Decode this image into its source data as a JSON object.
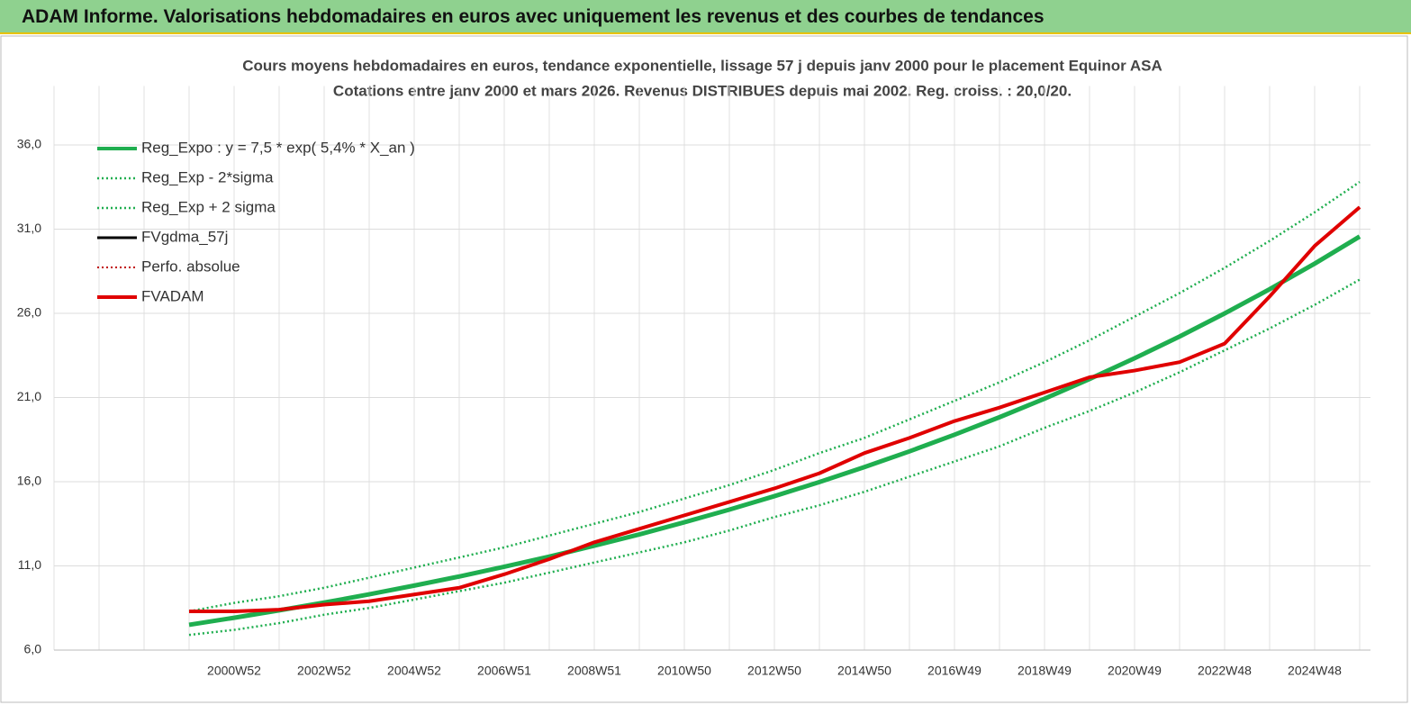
{
  "header": {
    "title": "ADAM Informe. Valorisations hebdomadaires en euros avec uniquement les revenus et des courbes de tendances"
  },
  "chart_data": {
    "type": "line",
    "title": "Cours moyens hebdomadaires en euros, tendance exponentielle, lissage 57 j depuis janv 2000 pour le placement Equinor ASA",
    "subtitle": "Cotations entre janv 2000 et mars 2026. Revenus DISTRIBUES depuis mai 2002. Reg. croiss. : 20,0/20.",
    "categories": [
      null,
      null,
      null,
      null,
      "2000W52",
      null,
      "2002W52",
      null,
      "2004W52",
      null,
      "2006W51",
      null,
      "2008W51",
      null,
      "2010W50",
      null,
      "2012W50",
      null,
      "2014W50",
      null,
      "2016W49",
      null,
      "2018W49",
      null,
      "2020W49",
      null,
      "2022W48",
      null,
      "2024W48",
      null
    ],
    "ylim": [
      6,
      39.5
    ],
    "yticks": [
      {
        "value": 6,
        "label": "6,0"
      },
      {
        "value": 11,
        "label": "11,0"
      },
      {
        "value": 16,
        "label": "16,0"
      },
      {
        "value": 21,
        "label": "21,0"
      },
      {
        "value": 26,
        "label": "26,0"
      },
      {
        "value": 31,
        "label": "31,0"
      },
      {
        "value": 36,
        "label": "36,0"
      }
    ],
    "grid": true,
    "series": [
      {
        "name": "Reg_Expo : y = 7,5 * exp( 5,4% *  X_an )",
        "color": "#1fae4f",
        "width": 5,
        "dash": "solid",
        "values": [
          null,
          null,
          null,
          7.5,
          7.92,
          8.36,
          8.82,
          9.31,
          9.83,
          10.37,
          10.95,
          11.55,
          12.2,
          12.87,
          13.59,
          14.34,
          15.14,
          15.98,
          16.87,
          17.8,
          18.79,
          19.83,
          20.93,
          22.1,
          23.33,
          24.62,
          25.99,
          27.43,
          28.95,
          30.56
        ]
      },
      {
        "name": "Reg_Exp - 2*sigma",
        "color": "#1fae4f",
        "width": 2.5,
        "dash": "dotted",
        "values": [
          null,
          null,
          null,
          6.9,
          7.2,
          7.6,
          8.1,
          8.5,
          9.0,
          9.5,
          10.0,
          10.6,
          11.2,
          11.8,
          12.4,
          13.1,
          13.9,
          14.6,
          15.4,
          16.3,
          17.2,
          18.1,
          19.2,
          20.2,
          21.3,
          22.5,
          23.8,
          25.1,
          26.5,
          28.0
        ]
      },
      {
        "name": "Reg_Exp + 2 sigma",
        "color": "#1fae4f",
        "width": 2.5,
        "dash": "dotted",
        "values": [
          null,
          null,
          null,
          8.3,
          8.8,
          9.2,
          9.7,
          10.3,
          10.9,
          11.5,
          12.1,
          12.8,
          13.5,
          14.2,
          15.0,
          15.8,
          16.7,
          17.7,
          18.6,
          19.7,
          20.8,
          21.9,
          23.1,
          24.4,
          25.8,
          27.2,
          28.7,
          30.3,
          32.0,
          33.8
        ]
      },
      {
        "name": "FVgdma_57j",
        "color": "#000000",
        "width": 3,
        "dash": "solid",
        "values": [
          null,
          null,
          null,
          8.3,
          8.3,
          8.4,
          8.7,
          8.9,
          9.3,
          9.7,
          10.5,
          11.4,
          12.4,
          13.2,
          14.0,
          14.8,
          15.6,
          16.5,
          17.7,
          18.6,
          19.6,
          20.4,
          21.3,
          22.2,
          22.6,
          23.1,
          24.2,
          27.0,
          30.0,
          32.3
        ]
      },
      {
        "name": "Perfo. absolue",
        "color": "#c00000",
        "width": 2,
        "dash": "dotted",
        "values": [
          null,
          null,
          null,
          8.3,
          8.3,
          8.4,
          8.7,
          8.9,
          9.3,
          9.7,
          10.5,
          11.4,
          12.4,
          13.2,
          14.0,
          14.8,
          15.6,
          16.5,
          17.7,
          18.6,
          19.6,
          20.4,
          21.3,
          22.2,
          22.6,
          23.1,
          24.2,
          27.0,
          30.0,
          32.3
        ]
      },
      {
        "name": "FVADAM",
        "color": "#e00000",
        "width": 4,
        "dash": "solid",
        "values": [
          null,
          null,
          null,
          8.3,
          8.3,
          8.4,
          8.7,
          8.9,
          9.3,
          9.7,
          10.5,
          11.4,
          12.4,
          13.2,
          14.0,
          14.8,
          15.6,
          16.5,
          17.7,
          18.6,
          19.6,
          20.4,
          21.3,
          22.2,
          22.6,
          23.1,
          24.2,
          27.0,
          30.0,
          32.3
        ]
      }
    ]
  }
}
